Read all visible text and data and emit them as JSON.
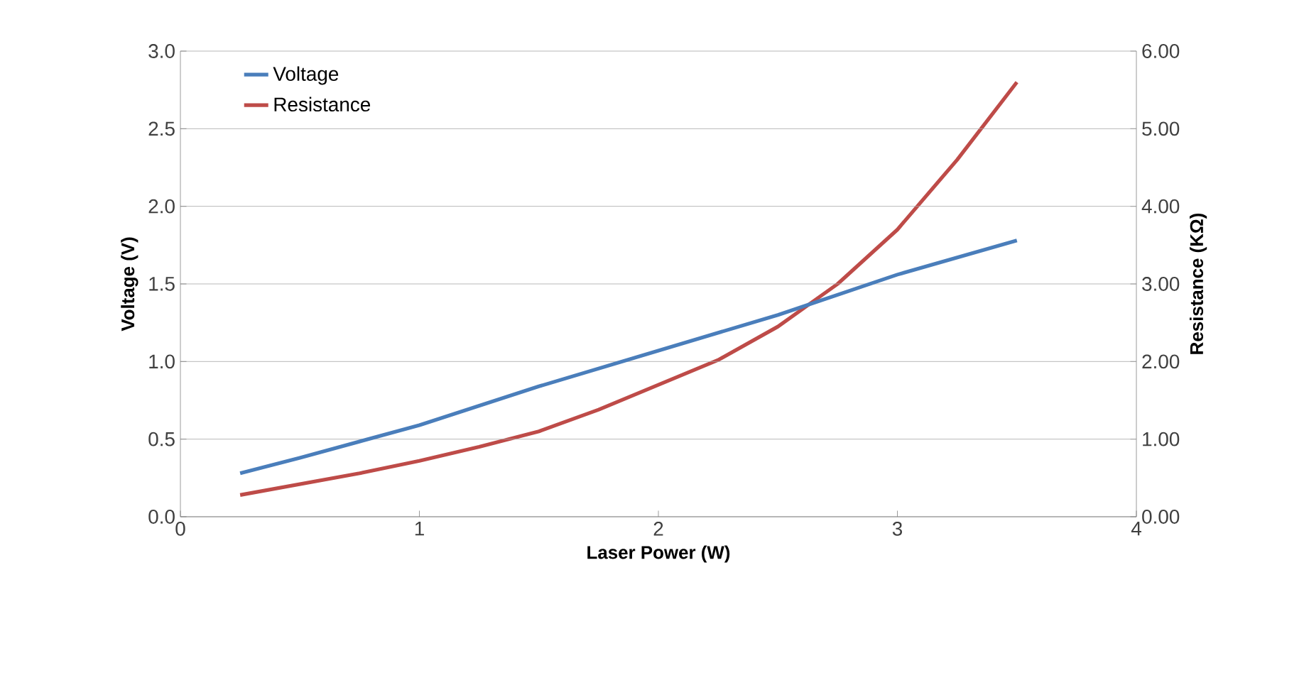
{
  "chart_data": {
    "type": "line",
    "xlabel": "Laser Power (W)",
    "ylabel": "Voltage (V)",
    "y2label": "Resistance (KΩ)",
    "xlim": [
      0,
      4
    ],
    "xticks": [
      0,
      1,
      2,
      3,
      4
    ],
    "ylim": [
      0,
      3
    ],
    "yticks": [
      {
        "value": 0,
        "label": "0.0"
      },
      {
        "value": 0.5,
        "label": "0.5"
      },
      {
        "value": 1,
        "label": "1.0"
      },
      {
        "value": 1.5,
        "label": "1.5"
      },
      {
        "value": 2,
        "label": "2.0"
      },
      {
        "value": 2.5,
        "label": "2.5"
      },
      {
        "value": 3,
        "label": "3.0"
      }
    ],
    "y2lim": [
      0,
      6
    ],
    "y2ticks": [
      {
        "value": 0,
        "label": "0.00"
      },
      {
        "value": 1,
        "label": "1.00"
      },
      {
        "value": 2,
        "label": "2.00"
      },
      {
        "value": 3,
        "label": "3.00"
      },
      {
        "value": 4,
        "label": "4.00"
      },
      {
        "value": 5,
        "label": "5.00"
      },
      {
        "value": 6,
        "label": "6.00"
      }
    ],
    "grid": "y",
    "legend": "top left",
    "marker": "none",
    "line_style": "solid",
    "series": [
      {
        "name": "Voltage",
        "color": "#4a7ebb",
        "x": [
          0.25,
          0.5,
          1,
          1.5,
          2,
          2.5,
          3,
          3.5
        ],
        "values": [
          0.28,
          0.38,
          0.59,
          0.84,
          1.07,
          1.3,
          1.56,
          1.78
        ]
      },
      {
        "name": "Resistance",
        "color": "#be4b48",
        "axis": "y2",
        "x": [
          0.25,
          0.5,
          0.75,
          1,
          1.25,
          1.5,
          1.75,
          2,
          2.25,
          2.5,
          2.75,
          3,
          3.25,
          3.5
        ],
        "values": [
          0.28,
          0.42,
          0.56,
          0.72,
          0.9,
          1.1,
          1.38,
          1.7,
          2.02,
          2.45,
          3.0,
          3.7,
          4.6,
          5.6
        ]
      }
    ]
  }
}
